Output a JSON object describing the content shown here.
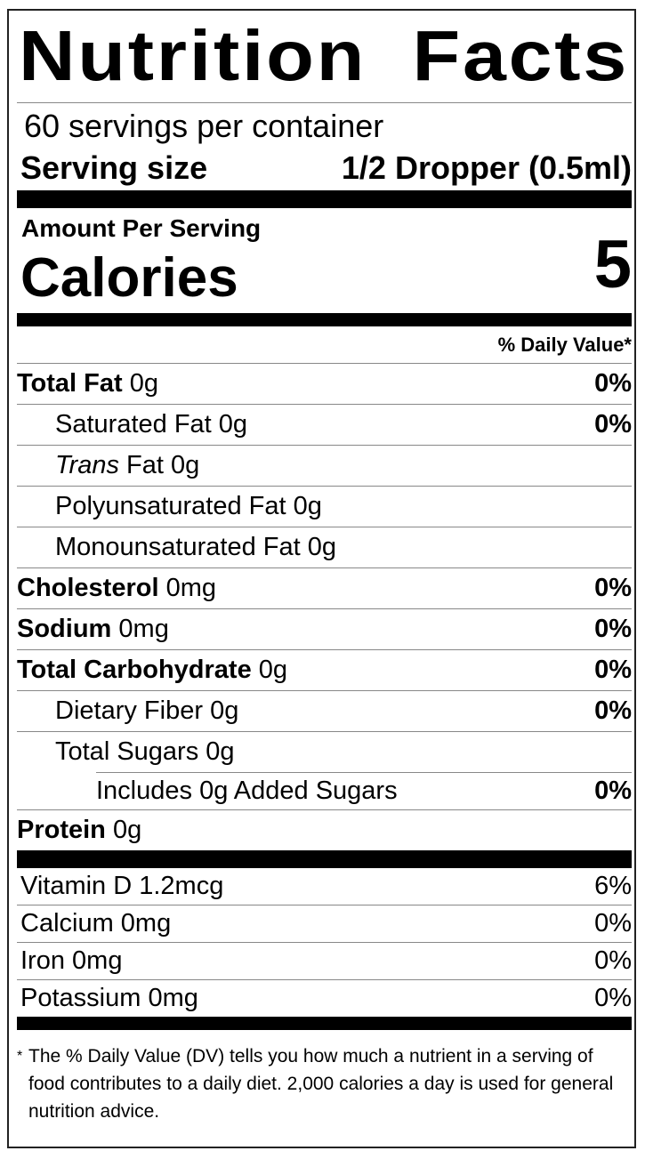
{
  "title": "Nutrition Facts",
  "servings_per_container": "60 servings per container",
  "serving_size": {
    "label": "Serving size",
    "value": "1/2 Dropper (0.5ml)"
  },
  "amount_per_serving": "Amount Per Serving",
  "calories": {
    "label": "Calories",
    "value": "5"
  },
  "daily_value_header": "% Daily Value*",
  "nutrients": [
    {
      "name": "Total Fat",
      "amount": "0g",
      "dv": "0%"
    },
    {
      "name": "Saturated Fat",
      "amount": "0g",
      "dv": "0%"
    },
    {
      "name_prefix": "Trans",
      "name": "Fat",
      "amount": "0g"
    },
    {
      "name": "Polyunsaturated Fat",
      "amount": "0g"
    },
    {
      "name": "Monounsaturated Fat",
      "amount": "0g"
    },
    {
      "name": "Cholesterol",
      "amount": "0mg",
      "dv": "0%"
    },
    {
      "name": "Sodium",
      "amount": "0mg",
      "dv": "0%"
    },
    {
      "name": "Total Carbohydrate",
      "amount": "0g",
      "dv": "0%"
    },
    {
      "name": "Dietary Fiber",
      "amount": "0g",
      "dv": "0%"
    },
    {
      "name": "Total Sugars",
      "amount": "0g"
    },
    {
      "name": "Includes 0g Added Sugars",
      "dv": "0%"
    },
    {
      "name": "Protein",
      "amount": "0g"
    }
  ],
  "vitamins": [
    {
      "label": "Vitamin D 1.2mcg",
      "dv": "6%"
    },
    {
      "label": "Calcium 0mg",
      "dv": "0%"
    },
    {
      "label": "Iron 0mg",
      "dv": "0%"
    },
    {
      "label": "Potassium 0mg",
      "dv": "0%"
    }
  ],
  "footnote": {
    "star": "*",
    "text": "The % Daily Value (DV) tells you how much a nutrient in a serving of food contributes to a daily diet. 2,000 calories a day is used for general nutrition advice."
  }
}
